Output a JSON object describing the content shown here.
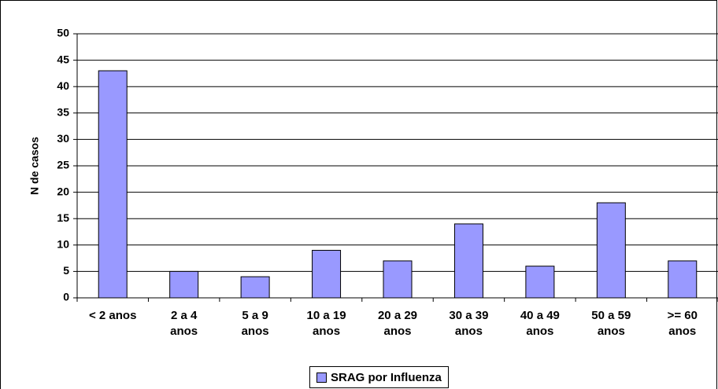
{
  "chart_data": {
    "type": "bar",
    "y_label": "N de casos",
    "categories": [
      "< 2 anos",
      "2 a 4 anos",
      "5 a 9 anos",
      "10 a 19 anos",
      "20 a 29 anos",
      "30 a 39 anos",
      "40 a 49 anos",
      "50 a 59 anos",
      ">= 60 anos"
    ],
    "series": [
      {
        "name": "SRAG por Influenza",
        "color": "#9999ff",
        "values": [
          43,
          5,
          4,
          9,
          7,
          14,
          6,
          18,
          7
        ]
      }
    ],
    "ylim": [
      0,
      50
    ],
    "yticks": [
      0,
      5,
      10,
      15,
      20,
      25,
      30,
      35,
      40,
      45,
      50
    ],
    "grid": true
  }
}
